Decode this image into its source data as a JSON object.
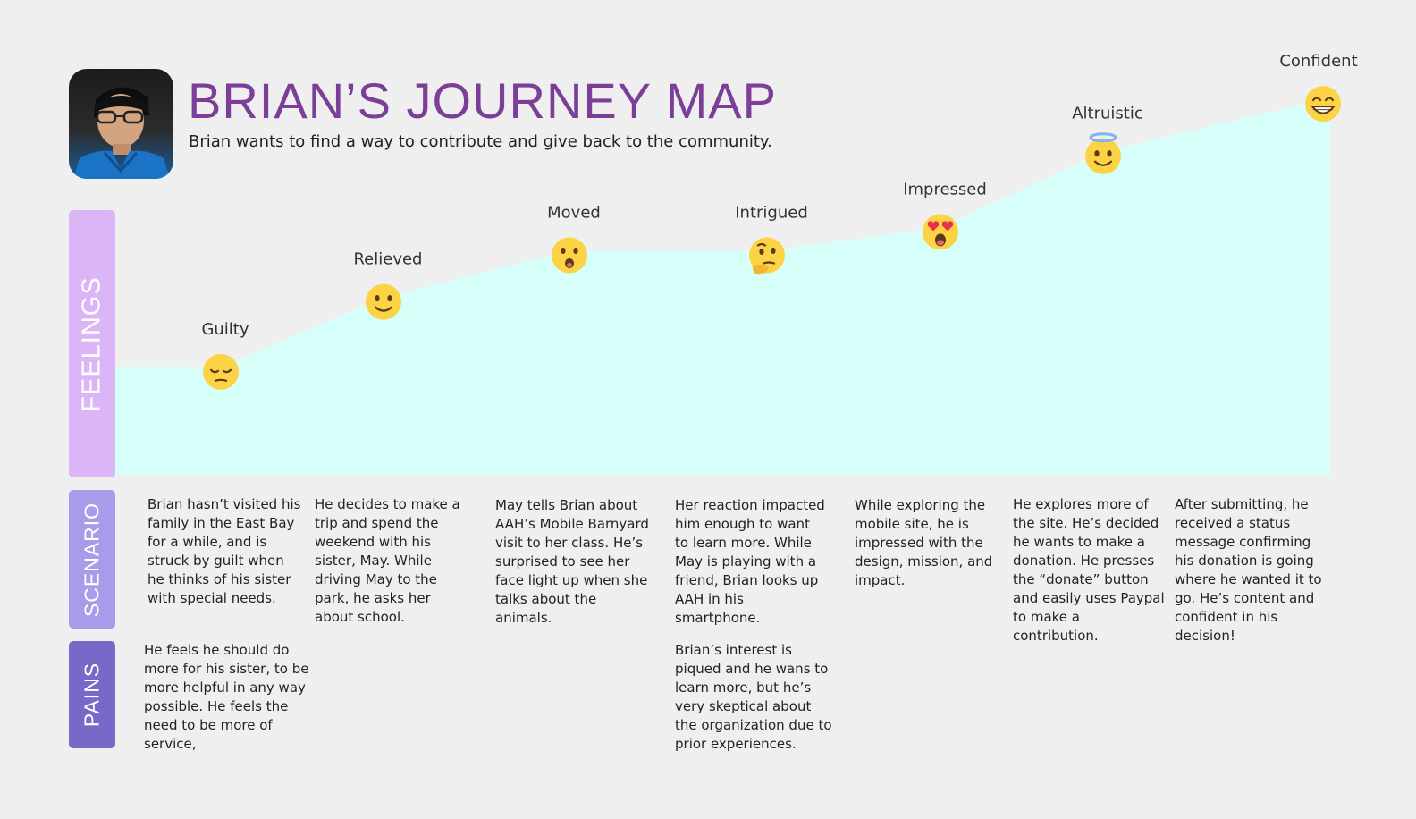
{
  "header": {
    "title": "BRIAN’S JOURNEY MAP",
    "subtitle": "Brian wants to find a way to contribute and give back to the community."
  },
  "rows": {
    "feelings": "FEELINGS",
    "scenario": "SCENARIO",
    "pains": "PAINS"
  },
  "colors": {
    "title": "#7b3f98",
    "feelings_band": "#dcb5f6",
    "scenario_band": "#a89be9",
    "pains_band": "#7868c8",
    "curve_fill": "#d7fff9",
    "emoji": "#fcd344"
  },
  "chart_data": {
    "type": "area",
    "title": "",
    "categories": [
      "Guilty",
      "Relieved",
      "Moved",
      "Intrigued",
      "Impressed",
      "Altruistic",
      "Confident"
    ],
    "values": [
      1,
      2.2,
      3,
      3,
      3.4,
      4.7,
      5.6
    ],
    "ylim": [
      0,
      6
    ],
    "emoji_icons": [
      "pensive-face-icon",
      "smiling-face-icon",
      "surprised-face-icon",
      "thinking-face-icon",
      "heart-eyes-face-icon",
      "halo-face-icon",
      "grinning-face-icon"
    ]
  },
  "scenarios": [
    "Brian hasn’t visited his family in the East Bay for a while, and is struck by guilt when he thinks of his sister with special needs.",
    "He decides to make a trip and spend the weekend with his sister, May. While driving May to the park, he asks her about school.",
    "May tells Brian about AAH’s Mobile Barnyard visit to her class. He’s surprised to see her face light up when she talks about the animals.",
    "Her reaction impacted him enough to want to learn more. While May is playing with a friend, Brian looks up AAH in his smartphone.",
    "While exploring the mobile site, he is impressed with the design, mission, and impact.",
    "He explores more of the site. He’s decided he wants to make a donation. He presses the “donate” button and easily uses Paypal to make a contribution.",
    "After submitting, he received a status message confirming his donation is going where he wanted it to go. He’s content and confident in his decision!"
  ],
  "pains": [
    "He feels he should do more for his sister, to be more helpful in any way possible. He feels the need to be more of service,",
    "",
    "",
    "Brian’s interest is piqued and he wans to learn more, but he’s very skeptical about the organization due to prior experiences.",
    "",
    "",
    ""
  ]
}
